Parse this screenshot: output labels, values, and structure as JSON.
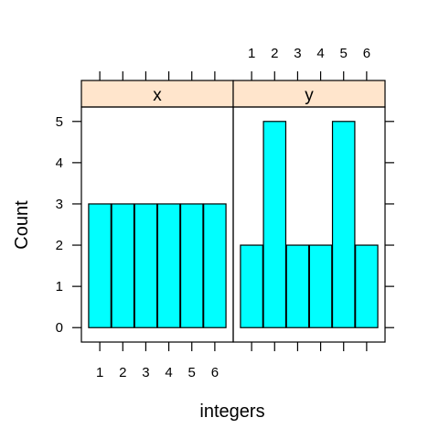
{
  "chart_data": {
    "type": "bar",
    "xlabel": "integers",
    "ylabel": "Count",
    "ylim": [
      -0.35,
      5.35
    ],
    "y_ticks": [
      "0",
      "1",
      "2",
      "3",
      "4",
      "5"
    ],
    "x_ticks": [
      "1",
      "2",
      "3",
      "4",
      "5",
      "6"
    ],
    "bar_color": "#00FFFF",
    "strip_color": "#FFE5CC",
    "panels": [
      {
        "name": "x",
        "categories": [
          1,
          2,
          3,
          4,
          5,
          6
        ],
        "values": [
          3,
          3,
          3,
          3,
          3,
          3
        ]
      },
      {
        "name": "y",
        "categories": [
          1,
          2,
          3,
          4,
          5,
          6
        ],
        "values": [
          2,
          5,
          2,
          2,
          5,
          2
        ]
      }
    ]
  }
}
